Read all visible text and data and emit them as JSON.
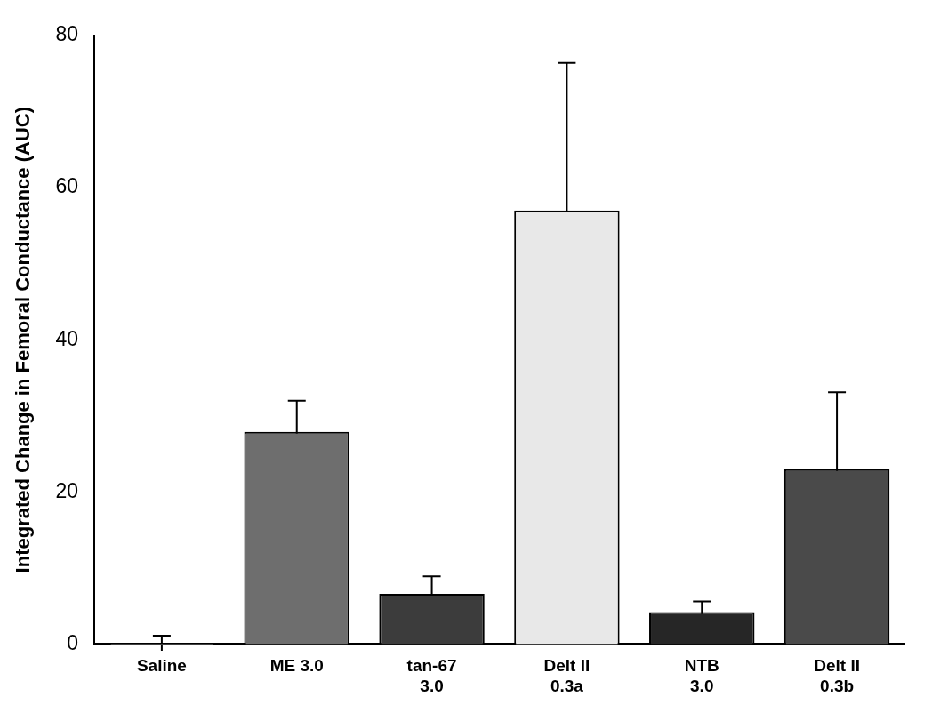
{
  "chart_data": {
    "type": "bar",
    "ylabel": "Integrated Change in Femoral Conductance (AUC)",
    "categories": [
      "Saline",
      "ME 3.0",
      "tan-67\n3.0",
      "Delt II\n0.3a",
      "NTB\n3.0",
      "Delt II\n0.3b"
    ],
    "values": [
      0.1,
      27.9,
      6.6,
      57.0,
      4.2,
      23.0
    ],
    "errors": [
      1.0,
      4.1,
      2.3,
      19.4,
      1.4,
      10.1
    ],
    "colors": [
      "#ffffff",
      "#6e6e6e",
      "#3c3c3c",
      "#e8e8e8",
      "#262626",
      "#4a4a4a"
    ],
    "ylim": [
      0,
      80
    ],
    "yticks": [
      0,
      20,
      40,
      60,
      80
    ],
    "grid": false,
    "legend": false
  }
}
